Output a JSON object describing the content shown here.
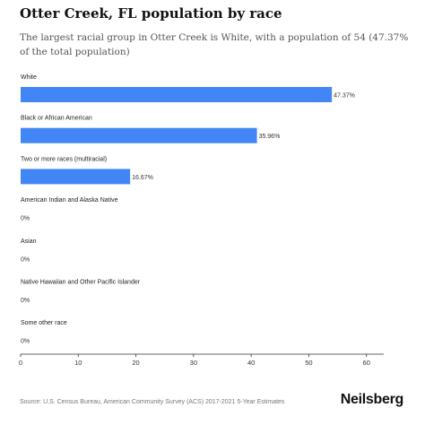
{
  "header": {
    "title": "Otter Creek, FL population by race",
    "subtitle": "The largest racial group in Otter Creek is White, with a population of 54 (47.37% of the total population)"
  },
  "footer": {
    "source": "Source: U.S. Census Bureau, American Community Survey (ACS) 2017-2021 5-Year Estimates",
    "brand": "Neilsberg"
  },
  "colors": {
    "bar": "#4285f4",
    "axis": "#333333"
  },
  "chart_data": {
    "type": "bar",
    "orientation": "horizontal",
    "categories": [
      "White",
      "Black or African American",
      "Two or more races (multiracial)",
      "American Indian and Alaska Native",
      "Asian",
      "Native Hawaiian and Other Pacific Islander",
      "Some other race"
    ],
    "values": [
      54,
      41,
      19,
      0,
      0,
      0,
      0
    ],
    "value_labels": [
      "47.37%",
      "35.96%",
      "16.67%",
      "0%",
      "0%",
      "0%",
      "0%"
    ],
    "xlim": [
      0,
      63
    ],
    "xticks": [
      0,
      10,
      20,
      30,
      40,
      50,
      60
    ],
    "grid": false,
    "legend": "none"
  }
}
